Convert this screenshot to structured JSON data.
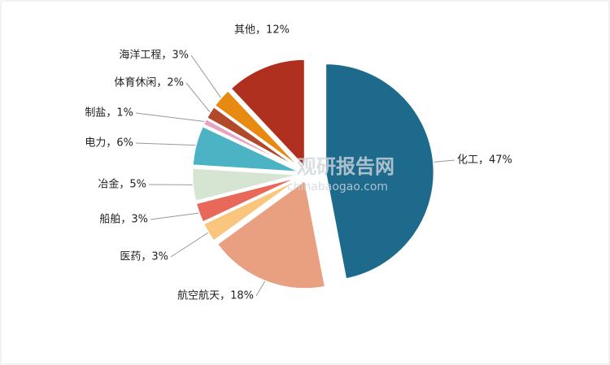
{
  "chart_data": {
    "type": "pie",
    "values": [
      47,
      18,
      3,
      3,
      5,
      6,
      1,
      2,
      3,
      12
    ],
    "value_labels": [
      "化工，47%",
      "航空航天，18%",
      "医药，3%",
      "船舶，3%",
      "冶金，5%",
      "电力，6%",
      "制盐，1%",
      "体育休闲，2%",
      "海洋工程，3%",
      "其他，12%"
    ],
    "colors": [
      "#1d6a8c",
      "#e9a081",
      "#fac57c",
      "#e8695a",
      "#d6e4d2",
      "#4bb3c4",
      "#e8a3c3",
      "#b1492a",
      "#e68a12",
      "#b0301f"
    ],
    "watermark": {
      "title": "观研报告网",
      "url": "chinabaogao.com"
    }
  }
}
